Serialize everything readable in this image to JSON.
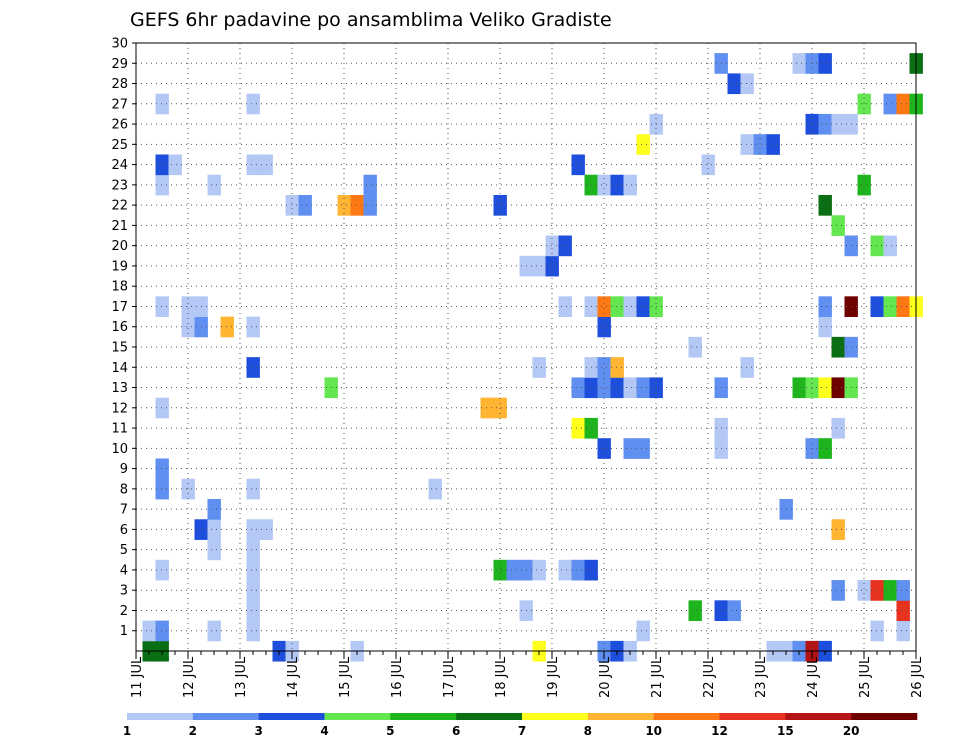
{
  "chart_data": {
    "type": "heatmap",
    "title": "GEFS 6hr padavine po ansamblima Veliko Gradiste",
    "xlabel": "",
    "ylabel": "",
    "x_ticks": [
      "11 JUL",
      "12 JUL",
      "13 JUL",
      "14 JUL",
      "15 JUL",
      "16 JUL",
      "17 JUL",
      "18 JUL",
      "19 JUL",
      "20 JUL",
      "21 JUL",
      "22 JUL",
      "23 JUL",
      "24 JUL",
      "25 JUL",
      "26 JUL"
    ],
    "y_ticks": [
      "1",
      "2",
      "3",
      "4",
      "5",
      "6",
      "7",
      "8",
      "9",
      "10",
      "11",
      "12",
      "13",
      "14",
      "15",
      "16",
      "17",
      "18",
      "19",
      "20",
      "21",
      "22",
      "23",
      "24",
      "25",
      "26",
      "27",
      "28",
      "29",
      "30"
    ],
    "x_range": [
      0,
      60
    ],
    "y_range": [
      0,
      30
    ],
    "grid": true,
    "legend": {
      "position": "bottom",
      "labels": [
        "1",
        "2",
        "3",
        "4",
        "5",
        "6",
        "7",
        "8",
        "10",
        "12",
        "15",
        "20"
      ],
      "colors": [
        "#b4c8f5",
        "#5f8ff0",
        "#1e4fdc",
        "#64e650",
        "#1eb41e",
        "#0a6e14",
        "#ffff1e",
        "#ffb432",
        "#ff7814",
        "#e6321e",
        "#b41414",
        "#6e0000"
      ]
    },
    "cells": [
      {
        "t": 1,
        "m": 0,
        "c": 6
      },
      {
        "t": 2,
        "m": 0,
        "c": 6
      },
      {
        "t": 11,
        "m": 0,
        "c": 3
      },
      {
        "t": 12,
        "m": 0,
        "c": 1
      },
      {
        "t": 17,
        "m": 0,
        "c": 1
      },
      {
        "t": 31,
        "m": 0,
        "c": 7
      },
      {
        "t": 36,
        "m": 0,
        "c": 2
      },
      {
        "t": 37,
        "m": 0,
        "c": 3
      },
      {
        "t": 38,
        "m": 0,
        "c": 1
      },
      {
        "t": 49,
        "m": 0,
        "c": 1
      },
      {
        "t": 50,
        "m": 0,
        "c": 1
      },
      {
        "t": 51,
        "m": 0,
        "c": 2
      },
      {
        "t": 52,
        "m": 0,
        "c": 11
      },
      {
        "t": 53,
        "m": 0,
        "c": 3
      },
      {
        "t": 1,
        "m": 1,
        "c": 1
      },
      {
        "t": 2,
        "m": 1,
        "c": 2
      },
      {
        "t": 6,
        "m": 1,
        "c": 1
      },
      {
        "t": 9,
        "m": 1,
        "c": 1
      },
      {
        "t": 39,
        "m": 1,
        "c": 1
      },
      {
        "t": 57,
        "m": 1,
        "c": 1
      },
      {
        "t": 59,
        "m": 1,
        "c": 1
      },
      {
        "t": 9,
        "m": 2,
        "c": 1
      },
      {
        "t": 30,
        "m": 2,
        "c": 1
      },
      {
        "t": 43,
        "m": 2,
        "c": 5
      },
      {
        "t": 45,
        "m": 2,
        "c": 3
      },
      {
        "t": 46,
        "m": 2,
        "c": 2
      },
      {
        "t": 59,
        "m": 2,
        "c": 10
      },
      {
        "t": 9,
        "m": 3,
        "c": 1
      },
      {
        "t": 54,
        "m": 3,
        "c": 2
      },
      {
        "t": 56,
        "m": 3,
        "c": 1
      },
      {
        "t": 57,
        "m": 3,
        "c": 10
      },
      {
        "t": 58,
        "m": 3,
        "c": 5
      },
      {
        "t": 59,
        "m": 3,
        "c": 2
      },
      {
        "t": 2,
        "m": 4,
        "c": 1
      },
      {
        "t": 9,
        "m": 4,
        "c": 1
      },
      {
        "t": 28,
        "m": 4,
        "c": 5
      },
      {
        "t": 29,
        "m": 4,
        "c": 2
      },
      {
        "t": 30,
        "m": 4,
        "c": 2
      },
      {
        "t": 31,
        "m": 4,
        "c": 1
      },
      {
        "t": 33,
        "m": 4,
        "c": 1
      },
      {
        "t": 34,
        "m": 4,
        "c": 2
      },
      {
        "t": 35,
        "m": 4,
        "c": 3
      },
      {
        "t": 6,
        "m": 5,
        "c": 1
      },
      {
        "t": 9,
        "m": 5,
        "c": 1
      },
      {
        "t": 5,
        "m": 6,
        "c": 3
      },
      {
        "t": 6,
        "m": 6,
        "c": 1
      },
      {
        "t": 9,
        "m": 6,
        "c": 1
      },
      {
        "t": 10,
        "m": 6,
        "c": 1
      },
      {
        "t": 54,
        "m": 6,
        "c": 8
      },
      {
        "t": 6,
        "m": 7,
        "c": 2
      },
      {
        "t": 50,
        "m": 7,
        "c": 2
      },
      {
        "t": 2,
        "m": 8,
        "c": 2
      },
      {
        "t": 4,
        "m": 8,
        "c": 1
      },
      {
        "t": 9,
        "m": 8,
        "c": 1
      },
      {
        "t": 23,
        "m": 8,
        "c": 1
      },
      {
        "t": 2,
        "m": 9,
        "c": 2
      },
      {
        "t": 36,
        "m": 10,
        "c": 3
      },
      {
        "t": 38,
        "m": 10,
        "c": 2
      },
      {
        "t": 39,
        "m": 10,
        "c": 2
      },
      {
        "t": 45,
        "m": 10,
        "c": 1
      },
      {
        "t": 52,
        "m": 10,
        "c": 2
      },
      {
        "t": 53,
        "m": 10,
        "c": 5
      },
      {
        "t": 34,
        "m": 11,
        "c": 7
      },
      {
        "t": 35,
        "m": 11,
        "c": 5
      },
      {
        "t": 45,
        "m": 11,
        "c": 1
      },
      {
        "t": 54,
        "m": 11,
        "c": 1
      },
      {
        "t": 2,
        "m": 12,
        "c": 1
      },
      {
        "t": 27,
        "m": 12,
        "c": 8
      },
      {
        "t": 28,
        "m": 12,
        "c": 8
      },
      {
        "t": 15,
        "m": 13,
        "c": 4
      },
      {
        "t": 34,
        "m": 13,
        "c": 2
      },
      {
        "t": 35,
        "m": 13,
        "c": 3
      },
      {
        "t": 36,
        "m": 13,
        "c": 2
      },
      {
        "t": 37,
        "m": 13,
        "c": 3
      },
      {
        "t": 38,
        "m": 13,
        "c": 1
      },
      {
        "t": 39,
        "m": 13,
        "c": 2
      },
      {
        "t": 40,
        "m": 13,
        "c": 3
      },
      {
        "t": 45,
        "m": 13,
        "c": 2
      },
      {
        "t": 51,
        "m": 13,
        "c": 5
      },
      {
        "t": 52,
        "m": 13,
        "c": 4
      },
      {
        "t": 53,
        "m": 13,
        "c": 7
      },
      {
        "t": 54,
        "m": 13,
        "c": 12
      },
      {
        "t": 55,
        "m": 13,
        "c": 4
      },
      {
        "t": 9,
        "m": 14,
        "c": 3
      },
      {
        "t": 31,
        "m": 14,
        "c": 1
      },
      {
        "t": 35,
        "m": 14,
        "c": 1
      },
      {
        "t": 36,
        "m": 14,
        "c": 2
      },
      {
        "t": 37,
        "m": 14,
        "c": 8
      },
      {
        "t": 47,
        "m": 14,
        "c": 1
      },
      {
        "t": 43,
        "m": 15,
        "c": 1
      },
      {
        "t": 54,
        "m": 15,
        "c": 6
      },
      {
        "t": 55,
        "m": 15,
        "c": 2
      },
      {
        "t": 4,
        "m": 16,
        "c": 1
      },
      {
        "t": 5,
        "m": 16,
        "c": 2
      },
      {
        "t": 7,
        "m": 16,
        "c": 8
      },
      {
        "t": 9,
        "m": 16,
        "c": 1
      },
      {
        "t": 36,
        "m": 16,
        "c": 3
      },
      {
        "t": 53,
        "m": 16,
        "c": 1
      },
      {
        "t": 2,
        "m": 17,
        "c": 1
      },
      {
        "t": 4,
        "m": 17,
        "c": 1
      },
      {
        "t": 5,
        "m": 17,
        "c": 1
      },
      {
        "t": 33,
        "m": 17,
        "c": 1
      },
      {
        "t": 35,
        "m": 17,
        "c": 1
      },
      {
        "t": 36,
        "m": 17,
        "c": 9
      },
      {
        "t": 37,
        "m": 17,
        "c": 4
      },
      {
        "t": 38,
        "m": 17,
        "c": 1
      },
      {
        "t": 39,
        "m": 17,
        "c": 3
      },
      {
        "t": 40,
        "m": 17,
        "c": 4
      },
      {
        "t": 53,
        "m": 17,
        "c": 2
      },
      {
        "t": 55,
        "m": 17,
        "c": 12
      },
      {
        "t": 57,
        "m": 17,
        "c": 3
      },
      {
        "t": 58,
        "m": 17,
        "c": 4
      },
      {
        "t": 59,
        "m": 17,
        "c": 9
      },
      {
        "t": 60,
        "m": 17,
        "c": 7
      },
      {
        "t": 30,
        "m": 19,
        "c": 1
      },
      {
        "t": 31,
        "m": 19,
        "c": 1
      },
      {
        "t": 32,
        "m": 19,
        "c": 3
      },
      {
        "t": 32,
        "m": 20,
        "c": 1
      },
      {
        "t": 33,
        "m": 20,
        "c": 3
      },
      {
        "t": 55,
        "m": 20,
        "c": 2
      },
      {
        "t": 57,
        "m": 20,
        "c": 4
      },
      {
        "t": 58,
        "m": 20,
        "c": 1
      },
      {
        "t": 54,
        "m": 21,
        "c": 4
      },
      {
        "t": 12,
        "m": 22,
        "c": 1
      },
      {
        "t": 13,
        "m": 22,
        "c": 2
      },
      {
        "t": 16,
        "m": 22,
        "c": 8
      },
      {
        "t": 17,
        "m": 22,
        "c": 9
      },
      {
        "t": 18,
        "m": 22,
        "c": 2
      },
      {
        "t": 28,
        "m": 22,
        "c": 3
      },
      {
        "t": 53,
        "m": 22,
        "c": 6
      },
      {
        "t": 2,
        "m": 23,
        "c": 1
      },
      {
        "t": 6,
        "m": 23,
        "c": 1
      },
      {
        "t": 18,
        "m": 23,
        "c": 2
      },
      {
        "t": 35,
        "m": 23,
        "c": 5
      },
      {
        "t": 36,
        "m": 23,
        "c": 1
      },
      {
        "t": 37,
        "m": 23,
        "c": 3
      },
      {
        "t": 38,
        "m": 23,
        "c": 1
      },
      {
        "t": 56,
        "m": 23,
        "c": 5
      },
      {
        "t": 2,
        "m": 24,
        "c": 3
      },
      {
        "t": 3,
        "m": 24,
        "c": 1
      },
      {
        "t": 9,
        "m": 24,
        "c": 1
      },
      {
        "t": 10,
        "m": 24,
        "c": 1
      },
      {
        "t": 34,
        "m": 24,
        "c": 3
      },
      {
        "t": 44,
        "m": 24,
        "c": 1
      },
      {
        "t": 39,
        "m": 25,
        "c": 7
      },
      {
        "t": 47,
        "m": 25,
        "c": 1
      },
      {
        "t": 48,
        "m": 25,
        "c": 2
      },
      {
        "t": 49,
        "m": 25,
        "c": 3
      },
      {
        "t": 40,
        "m": 26,
        "c": 1
      },
      {
        "t": 52,
        "m": 26,
        "c": 3
      },
      {
        "t": 53,
        "m": 26,
        "c": 2
      },
      {
        "t": 54,
        "m": 26,
        "c": 1
      },
      {
        "t": 55,
        "m": 26,
        "c": 1
      },
      {
        "t": 2,
        "m": 27,
        "c": 1
      },
      {
        "t": 9,
        "m": 27,
        "c": 1
      },
      {
        "t": 56,
        "m": 27,
        "c": 4
      },
      {
        "t": 58,
        "m": 27,
        "c": 2
      },
      {
        "t": 59,
        "m": 27,
        "c": 9
      },
      {
        "t": 60,
        "m": 27,
        "c": 5
      },
      {
        "t": 46,
        "m": 28,
        "c": 3
      },
      {
        "t": 47,
        "m": 28,
        "c": 1
      },
      {
        "t": 45,
        "m": 29,
        "c": 2
      },
      {
        "t": 51,
        "m": 29,
        "c": 1
      },
      {
        "t": 52,
        "m": 29,
        "c": 2
      },
      {
        "t": 53,
        "m": 29,
        "c": 3
      },
      {
        "t": 60,
        "m": 29,
        "c": 6
      }
    ]
  }
}
